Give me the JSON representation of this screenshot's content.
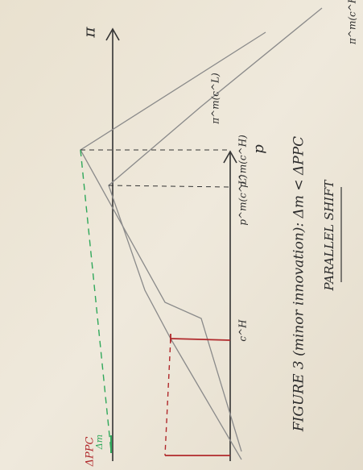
{
  "axes": {
    "y_label": "π",
    "x_label": "p"
  },
  "curves": {
    "low_cost": "π^m(c^L)",
    "high_cost": "π^m(c^H)"
  },
  "points": {
    "cost": "c^H",
    "price_low": "p^m(c^L)",
    "price_high": "p^m(c^H)"
  },
  "deltas": {
    "monopoly": "Δm",
    "ppc": "ΔPPC"
  },
  "caption": {
    "title": "FIGURE 3 (minor innovation): Δm < ΔPPC",
    "subtitle": "PARALLEL SHIFT"
  }
}
